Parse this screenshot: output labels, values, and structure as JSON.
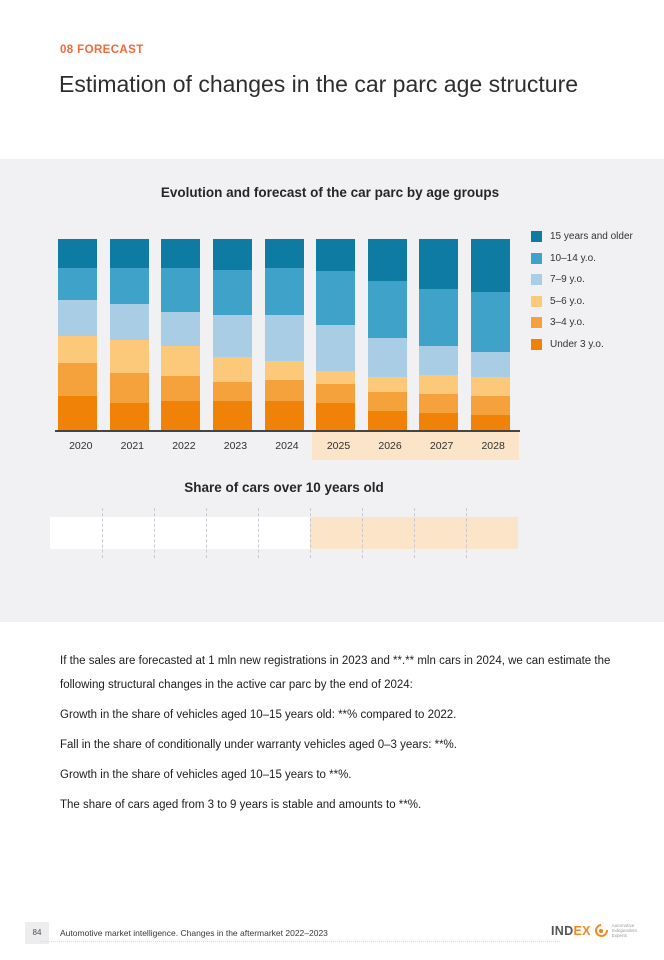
{
  "page": {
    "kicker": "08 FORECAST",
    "title": "Estimation of changes in the car parc age structure"
  },
  "chart_data": [
    {
      "type": "bar",
      "variant": "stacked-100-percent",
      "title": "Evolution and forecast of the car parc by age groups",
      "categories": [
        "2020",
        "2021",
        "2022",
        "2023",
        "2024",
        "2025",
        "2026",
        "2027",
        "2028"
      ],
      "forecast_categories": [
        "2025",
        "2026",
        "2027",
        "2028"
      ],
      "legend_position": "right",
      "ylim": [
        0,
        100
      ],
      "grid": false,
      "note": "segments not numerically labeled in source; values are % shares estimated from bar heights",
      "series": [
        {
          "name": "15 years and older",
          "color": "#0e7ba3",
          "values": [
            15,
            15,
            15,
            16,
            15,
            17,
            22,
            26,
            28
          ]
        },
        {
          "name": "10–14 y.o.",
          "color": "#3fa3c9",
          "values": [
            17,
            19,
            23,
            24,
            25,
            28,
            30,
            30,
            31
          ]
        },
        {
          "name": "7–9 y.o.",
          "color": "#a9cde5",
          "values": [
            19,
            19,
            18,
            22,
            24,
            24,
            20,
            15,
            13
          ]
        },
        {
          "name": "5–6 y.o.",
          "color": "#fcc879",
          "values": [
            14,
            17,
            16,
            13,
            10,
            7,
            8,
            10,
            10
          ]
        },
        {
          "name": "3–4 y.o.",
          "color": "#f6a23c",
          "values": [
            17,
            16,
            13,
            10,
            11,
            10,
            10,
            10,
            10
          ]
        },
        {
          "name": "Under 3 y.o.",
          "color": "#ef8207",
          "values": [
            18,
            14,
            15,
            15,
            15,
            14,
            10,
            9,
            8
          ]
        }
      ]
    },
    {
      "type": "bar",
      "title": "Share of cars over 10 years old",
      "categories": [
        "2020",
        "2021",
        "2022",
        "2023",
        "2024",
        "2025",
        "2026",
        "2027",
        "2028"
      ],
      "values": [],
      "historic_count": 5,
      "forecast_count": 4,
      "note": "value cells shown blank in source; 2025–2028 columns highlighted as forecast"
    }
  ],
  "body": {
    "paragraphs": [
      "If the sales are forecasted at 1 mln new registrations in 2023 and **.** mln cars in 2024, we can estimate the following structural changes in the active car parc by the end of 2024:",
      "Growth in the share of vehicles aged 10–15 years old: **% compared to 2022.",
      "Fall in the share of conditionally under warranty vehicles aged 0–3 years: **%.",
      "Growth in the share of vehicles aged 10–15 years to **%.",
      "The share of cars aged from 3 to 9 years is stable and amounts to **%."
    ]
  },
  "footer": {
    "page_number": "84",
    "report_title": "Automotive market intelligence. Changes in the aftermarket 2022–2023",
    "logo_text_dark": "IND",
    "logo_text_orange": "EX",
    "logo_tagline_lines": [
      "Automotive",
      "Independent",
      "Experts"
    ]
  },
  "colors": {
    "accent_orange": "#f4683b",
    "panel_background": "#f1f1f3",
    "forecast_highlight": "#fbe4c8",
    "axis": "#454545",
    "logo_orange": "#f6871f"
  }
}
